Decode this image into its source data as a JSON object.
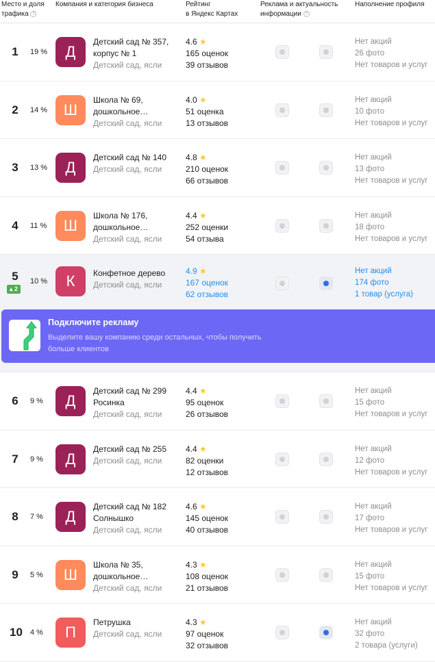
{
  "header": {
    "place": "Место и доля",
    "place2": "трафика",
    "company": "Компания и категория бизнеса",
    "rating": "Рейтинг",
    "rating2": "в Яндекс Картах",
    "ads": "Реклама и актуальность",
    "ads2": "информации",
    "fill": "Наполнение профиля",
    "help_icon": "?"
  },
  "rows": [
    {
      "place": "1",
      "share": "19 %",
      "letter": "Д",
      "color": "#9b2257",
      "name": "Детский сад № 357, корпус № 1",
      "category": "Детский сад, ясли",
      "rating": "4.6",
      "ratings": "165 оценок",
      "reviews": "39 отзывов",
      "promo": "Нет акций",
      "photos": "26 фото",
      "goods": "Нет товаров и услуг",
      "verified": false
    },
    {
      "place": "2",
      "share": "14 %",
      "letter": "Ш",
      "color": "#ff8a5b",
      "name": "Школа № 69, дошкольное…",
      "category": "Детский сад, ясли",
      "rating": "4.0",
      "ratings": "51 оценка",
      "reviews": "13 отзывов",
      "promo": "Нет акций",
      "photos": "10 фото",
      "goods": "Нет товаров и услуг",
      "verified": false
    },
    {
      "place": "3",
      "share": "13 %",
      "letter": "Д",
      "color": "#9b2257",
      "name": "Детский сад № 140",
      "category": "Детский сад, ясли",
      "rating": "4.8",
      "ratings": "210 оценок",
      "reviews": "66 отзывов",
      "promo": "Нет акций",
      "photos": "13 фото",
      "goods": "Нет товаров и услуг",
      "verified": false
    },
    {
      "place": "4",
      "share": "11 %",
      "letter": "Ш",
      "color": "#ff8a5b",
      "name": "Школа № 176, дошкольное…",
      "category": "Детский сад, ясли",
      "rating": "4.4",
      "ratings": "252 оценки",
      "reviews": "54 отзыва",
      "promo": "Нет акций",
      "photos": "18 фото",
      "goods": "Нет товаров и услуг",
      "verified": false
    },
    {
      "place": "5",
      "share": "10 %",
      "badge": "▴ 2",
      "letter": "К",
      "color": "#cf3f66",
      "name": "Конфетное дерево",
      "category": "Детский сад, ясли",
      "rating": "4.9",
      "ratings": "167 оценок",
      "reviews": "62 отзывов",
      "promo": "Нет акций",
      "photos": "174 фото",
      "goods": "1 товар (услуга)",
      "verified": true,
      "highlight": true
    },
    {
      "place": "6",
      "share": "9 %",
      "letter": "Д",
      "color": "#9b2257",
      "name": "Детский сад № 299 Росинка",
      "category": "Детский сад, ясли",
      "rating": "4.4",
      "ratings": "95 оценок",
      "reviews": "26 отзывов",
      "promo": "Нет акций",
      "photos": "15 фото",
      "goods": "Нет товаров и услуг",
      "verified": false
    },
    {
      "place": "7",
      "share": "9 %",
      "letter": "Д",
      "color": "#9b2257",
      "name": "Детский сад № 255",
      "category": "Детский сад, ясли",
      "rating": "4.4",
      "ratings": "82 оценки",
      "reviews": "12 отзывов",
      "promo": "Нет акций",
      "photos": "12 фото",
      "goods": "Нет товаров и услуг",
      "verified": false
    },
    {
      "place": "8",
      "share": "7 %",
      "letter": "Д",
      "color": "#9b2257",
      "name": "Детский сад № 182 Солнышко",
      "category": "Детский сад, ясли",
      "rating": "4.6",
      "ratings": "145 оценок",
      "reviews": "40 отзывов",
      "promo": "Нет акций",
      "photos": "17 фото",
      "goods": "Нет товаров и услуг",
      "verified": false
    },
    {
      "place": "9",
      "share": "5 %",
      "letter": "Ш",
      "color": "#ff8a5b",
      "name": "Школа № 35, дошкольное…",
      "category": "Детский сад, ясли",
      "rating": "4.3",
      "ratings": "108 оценок",
      "reviews": "21 отзывов",
      "promo": "Нет акций",
      "photos": "15 фото",
      "goods": "Нет товаров и услуг",
      "verified": false
    },
    {
      "place": "10",
      "share": "4 %",
      "letter": "П",
      "color": "#f25c5c",
      "name": "Петрушка",
      "category": "Детский сад, ясли",
      "rating": "4.3",
      "ratings": "97 оценок",
      "reviews": "32 отзывов",
      "promo": "Нет акций",
      "photos": "32 фото",
      "goods": "2 товара (услуги)",
      "verified": true
    }
  ],
  "banner": {
    "title": "Подключите рекламу",
    "text": "Выделите вашу компанию среди остальных, чтобы получить больше клиентов",
    "color": "#6c67f4"
  }
}
